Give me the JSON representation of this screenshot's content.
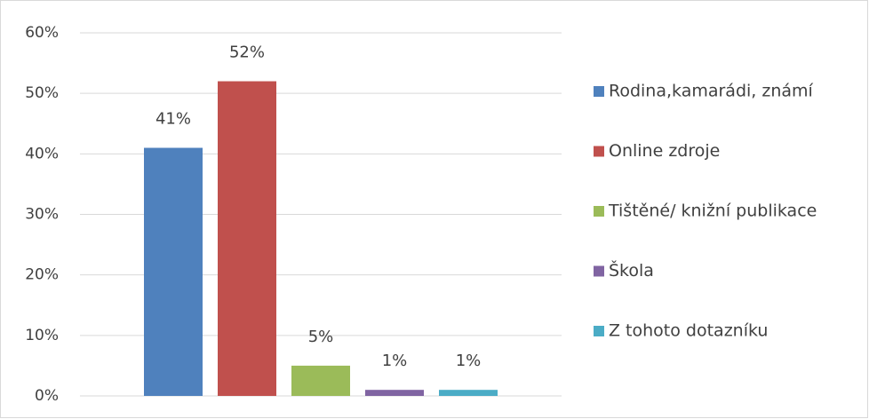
{
  "chart_data": {
    "type": "bar",
    "categories": [
      null
    ],
    "series": [
      {
        "name": "Rodina,kamarádi, známí",
        "color": "#4f81bd",
        "values": [
          41
        ],
        "value_labels": [
          "41%"
        ]
      },
      {
        "name": "Online zdroje",
        "color": "#c0504d",
        "values": [
          52
        ],
        "value_labels": [
          "52%"
        ]
      },
      {
        "name": "Tištěné/ knižní publikace",
        "color": "#9bbb59",
        "values": [
          5
        ],
        "value_labels": [
          "5%"
        ]
      },
      {
        "name": "Škola",
        "color": "#8064a2",
        "values": [
          1
        ],
        "value_labels": [
          "1%"
        ]
      },
      {
        "name": "Z tohoto dotazníku",
        "color": "#4bacc6",
        "values": [
          1
        ],
        "value_labels": [
          "1%"
        ]
      }
    ],
    "ylim": [
      0,
      60
    ],
    "yticks": [
      {
        "value": 0,
        "label": "0%"
      },
      {
        "value": 10,
        "label": "10%"
      },
      {
        "value": 20,
        "label": "20%"
      },
      {
        "value": 30,
        "label": "30%"
      },
      {
        "value": 40,
        "label": "40%"
      },
      {
        "value": 50,
        "label": "50%"
      },
      {
        "value": 60,
        "label": "60%"
      }
    ],
    "grid": true,
    "legend": "right"
  }
}
